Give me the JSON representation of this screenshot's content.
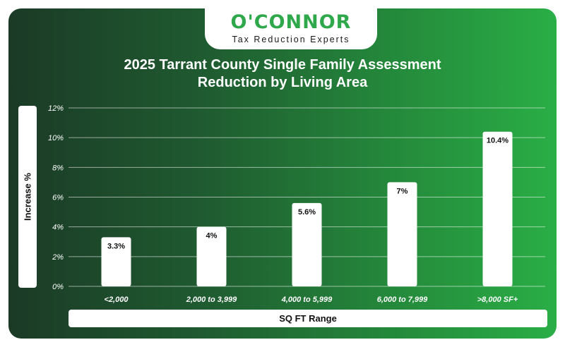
{
  "brand": {
    "name": "O'CONNOR",
    "tagline": "Tax Reduction Experts"
  },
  "chart_data": {
    "type": "bar",
    "title_lines": [
      "2025 Tarrant County Single Family Assessment",
      "Reduction by Living Area"
    ],
    "xlabel": "SQ FT Range",
    "ylabel": "Increase %",
    "categories": [
      "<2,000",
      "2,000 to 3,999",
      "4,000 to 5,999",
      "6,000 to 7,999",
      ">8,000 SF+"
    ],
    "values": [
      3.3,
      4,
      5.6,
      7,
      10.4
    ],
    "value_labels": [
      "3.3%",
      "4%",
      "5.6%",
      "7%",
      "10.4%"
    ],
    "ylim": [
      0,
      12
    ],
    "yticks": [
      0,
      2,
      4,
      6,
      8,
      10,
      12
    ],
    "ytick_labels": [
      "0%",
      "2%",
      "4%",
      "6%",
      "8%",
      "10%",
      "12%"
    ],
    "grid": true,
    "colors": {
      "bar": "#ffffff",
      "grid": "#ffffff",
      "brand_green": "#2ea84a"
    }
  }
}
